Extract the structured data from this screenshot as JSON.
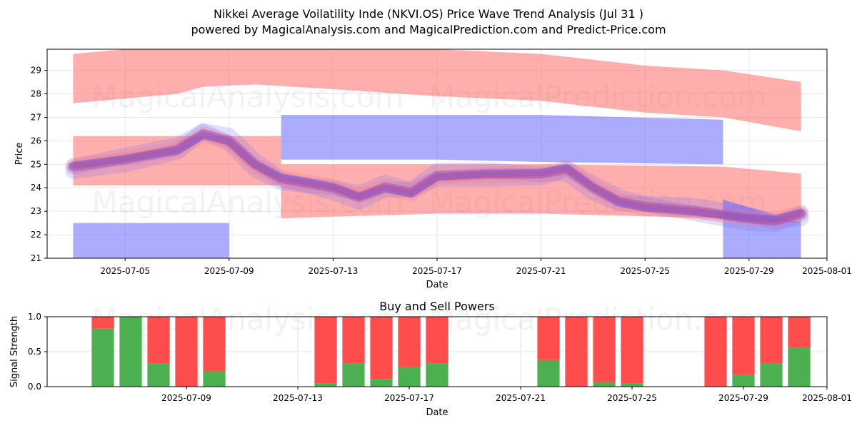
{
  "title_line1": "Nikkei Average Voilatility Inde (NKVI.OS) Price Wave Trend Analysis (Jul 31 )",
  "title_line2": "powered by MagicalAnalysis.com and MagicalPrediction.com and Predict-Price.com",
  "watermarks": [
    "MagicalAnalysis.com",
    "MagicalPrediction.com"
  ],
  "colors": {
    "sell_band": "#ff6b6b",
    "buy_band": "#5a5aff",
    "buy_power": "#4caf50",
    "sell_power": "#ff4c4c",
    "grid": "#e6e6e6"
  },
  "chart_data": [
    {
      "type": "area",
      "name": "price-wave-chart",
      "title": "",
      "xlabel": "Date",
      "ylabel": "Price",
      "xlim": [
        "2025-07-02",
        "2025-08-01"
      ],
      "ylim": [
        21,
        29.9
      ],
      "x_ticks": [
        "2025-07-05",
        "2025-07-09",
        "2025-07-13",
        "2025-07-17",
        "2025-07-21",
        "2025-07-25",
        "2025-07-29",
        "2025-08-01"
      ],
      "y_ticks": [
        21,
        22,
        23,
        24,
        25,
        26,
        27,
        28,
        29
      ],
      "grid": true,
      "series": [
        {
          "name": "red-upper-band",
          "color": "red",
          "points": [
            [
              "2025-07-03",
              27.6,
              29.7
            ],
            [
              "2025-07-05",
              27.8,
              29.9
            ],
            [
              "2025-07-07",
              28.0,
              29.9
            ],
            [
              "2025-07-08",
              28.3,
              30.0
            ],
            [
              "2025-07-10",
              28.4,
              30.0
            ],
            [
              "2025-07-13",
              28.2,
              30.0
            ],
            [
              "2025-07-17",
              27.9,
              29.9
            ],
            [
              "2025-07-21",
              27.7,
              29.7
            ],
            [
              "2025-07-25",
              27.2,
              29.2
            ],
            [
              "2025-07-28",
              27.0,
              29.0
            ],
            [
              "2025-07-31",
              26.4,
              28.5
            ]
          ]
        },
        {
          "name": "red-flat-band",
          "color": "red",
          "points": [
            [
              "2025-07-03",
              24.1,
              26.2
            ],
            [
              "2025-07-11",
              24.1,
              26.2
            ]
          ]
        },
        {
          "name": "red-lower-band",
          "color": "red",
          "points": [
            [
              "2025-07-11",
              22.7,
              25.0
            ],
            [
              "2025-07-17",
              22.9,
              25.0
            ],
            [
              "2025-07-21",
              22.9,
              25.0
            ],
            [
              "2025-07-28",
              22.7,
              24.9
            ],
            [
              "2025-07-31",
              22.5,
              24.6
            ]
          ]
        },
        {
          "name": "blue-low-band",
          "color": "blue",
          "points": [
            [
              "2025-07-03",
              21.0,
              22.5
            ],
            [
              "2025-07-09",
              21.0,
              22.5
            ]
          ]
        },
        {
          "name": "blue-high-band",
          "color": "blue",
          "points": [
            [
              "2025-07-11",
              25.2,
              27.1
            ],
            [
              "2025-07-17",
              25.2,
              27.1
            ],
            [
              "2025-07-21",
              25.1,
              27.1
            ],
            [
              "2025-07-28",
              25.0,
              26.9
            ]
          ]
        },
        {
          "name": "blue-drop-band",
          "color": "blue",
          "points": [
            [
              "2025-07-28",
              21.0,
              23.5
            ],
            [
              "2025-07-31",
              21.0,
              22.5
            ]
          ]
        },
        {
          "name": "price-wave-path",
          "color": "mixed",
          "points": [
            [
              "2025-07-03",
              24.9
            ],
            [
              "2025-07-05",
              25.2
            ],
            [
              "2025-07-07",
              25.6
            ],
            [
              "2025-07-08",
              26.3
            ],
            [
              "2025-07-09",
              26.0
            ],
            [
              "2025-07-10",
              25.0
            ],
            [
              "2025-07-11",
              24.4
            ],
            [
              "2025-07-13",
              24.0
            ],
            [
              "2025-07-14",
              23.6
            ],
            [
              "2025-07-15",
              24.0
            ],
            [
              "2025-07-16",
              23.8
            ],
            [
              "2025-07-17",
              24.5
            ],
            [
              "2025-07-19",
              24.6
            ],
            [
              "2025-07-21",
              24.6
            ],
            [
              "2025-07-22",
              24.8
            ],
            [
              "2025-07-23",
              24.0
            ],
            [
              "2025-07-24",
              23.4
            ],
            [
              "2025-07-25",
              23.2
            ],
            [
              "2025-07-27",
              23.0
            ],
            [
              "2025-07-29",
              22.7
            ],
            [
              "2025-07-30",
              22.6
            ],
            [
              "2025-07-31",
              22.9
            ]
          ]
        }
      ]
    },
    {
      "type": "bar",
      "name": "buy-sell-powers-chart",
      "title": "Buy and Sell Powers",
      "xlabel": "Date",
      "ylabel": "Signal Strength",
      "xlim": [
        "2025-07-04",
        "2025-08-01"
      ],
      "ylim": [
        0,
        1
      ],
      "x_ticks": [
        "2025-07-09",
        "2025-07-13",
        "2025-07-17",
        "2025-07-21",
        "2025-07-25",
        "2025-07-29",
        "2025-08-01"
      ],
      "y_ticks": [
        "0.0",
        "0.5",
        "1.0"
      ],
      "grid": true,
      "categories": [
        "2025-07-06",
        "2025-07-07",
        "2025-07-08",
        "2025-07-09",
        "2025-07-10",
        "2025-07-14",
        "2025-07-15",
        "2025-07-16",
        "2025-07-17",
        "2025-07-18",
        "2025-07-22",
        "2025-07-23",
        "2025-07-24",
        "2025-07-25",
        "2025-07-28",
        "2025-07-29",
        "2025-07-30",
        "2025-07-31"
      ],
      "series": [
        {
          "name": "Buy",
          "values": [
            0.83,
            1.0,
            0.33,
            0.0,
            0.22,
            0.05,
            0.33,
            0.11,
            0.28,
            0.33,
            0.38,
            0.0,
            0.06,
            0.05,
            0.0,
            0.17,
            0.33,
            0.56
          ]
        },
        {
          "name": "Sell",
          "values": [
            0.17,
            0.0,
            0.67,
            1.0,
            0.78,
            0.95,
            0.67,
            0.89,
            0.72,
            0.67,
            0.62,
            1.0,
            0.94,
            0.95,
            1.0,
            0.83,
            0.67,
            0.44
          ]
        }
      ]
    }
  ]
}
